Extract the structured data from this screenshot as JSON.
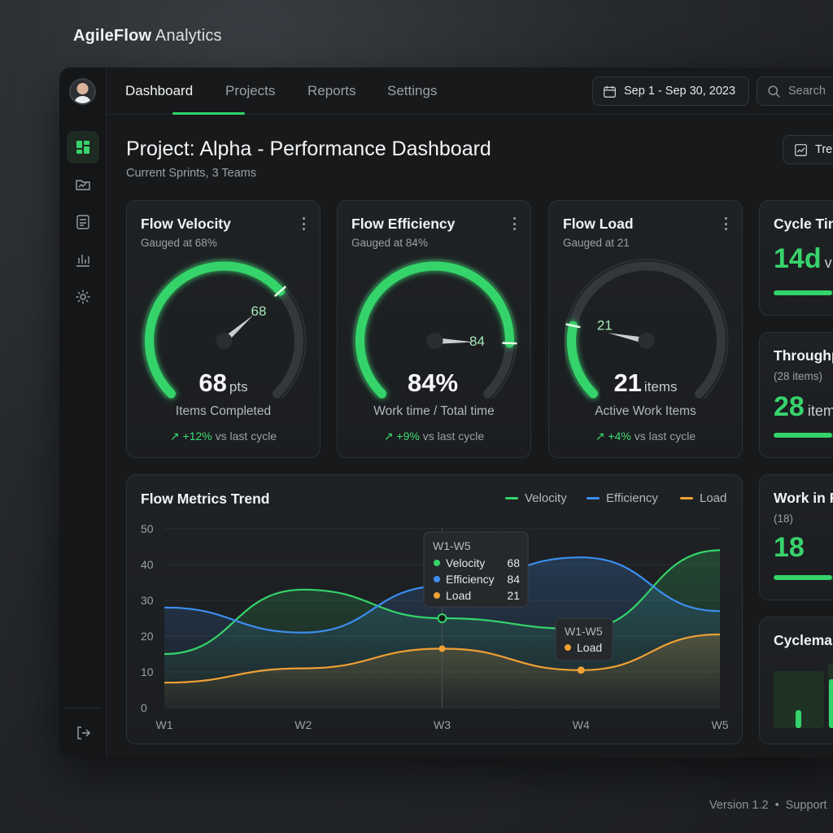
{
  "brand": {
    "name_bold": "AgileFlow",
    "name_rest": "Analytics"
  },
  "nav": {
    "tabs": [
      {
        "label": "Dashboard",
        "active": true
      },
      {
        "label": "Projects",
        "active": false
      },
      {
        "label": "Reports",
        "active": false
      },
      {
        "label": "Settings",
        "active": false
      }
    ],
    "date_range": "Sep 1 - Sep 30, 2023",
    "search_placeholder": "Search"
  },
  "sidebar": {
    "icons": [
      "dashboard-icon",
      "folder-chart-icon",
      "report-icon",
      "bar-chart-icon",
      "settings-icon"
    ],
    "logout_icon": "logout-icon"
  },
  "page": {
    "title": "Project: Alpha - Performance Dashboard",
    "subtitle": "Current Sprints, 3 Teams",
    "trend_button": "Trend"
  },
  "gauges": [
    {
      "title": "Flow Velocity",
      "sub": "Gauged at 68%",
      "needle_label": "68",
      "value": "68",
      "unit": "pts",
      "fraction": 0.68,
      "caption": "Items Completed",
      "delta": "+12%",
      "delta_rest": "vs last cycle"
    },
    {
      "title": "Flow Efficiency",
      "sub": "Gauged at 84%",
      "needle_label": "84",
      "value": "84%",
      "unit": "",
      "fraction": 0.84,
      "caption": "Work time / Total time",
      "delta": "+9%",
      "delta_rest": "vs last cycle"
    },
    {
      "title": "Flow Load",
      "sub": "Gauged at 21",
      "needle_label": "21",
      "value": "21",
      "unit": "items",
      "fraction": 0.21,
      "caption": "Active Work Items",
      "delta": "+4%",
      "delta_rest": "vs last cycle"
    }
  ],
  "side_cards": {
    "cycle_time": {
      "title": "Cycle Time",
      "value": "14d",
      "unit": "v",
      "fraction": 0.6
    },
    "throughput": {
      "title": "Throughput",
      "sub": "(28 items)",
      "value": "28",
      "unit": "items",
      "fraction": 0.6
    },
    "wip": {
      "title": "Work in Progress",
      "sub": "(18)",
      "value": "18",
      "fraction": 0.6
    },
    "cyclemap": {
      "title": "Cyclemap"
    }
  },
  "chart_data": {
    "type": "line",
    "title": "Flow Metrics Trend",
    "categories": [
      "W1",
      "W2",
      "W3",
      "W4",
      "W5"
    ],
    "ylim": [
      0,
      50
    ],
    "yticks": [
      "50",
      "40",
      "30",
      "20",
      "10",
      "0"
    ],
    "grid": true,
    "legend_position": "top-right",
    "series": [
      {
        "name": "Velocity",
        "color": "#34d46a",
        "values": [
          15,
          33,
          25,
          22,
          44
        ]
      },
      {
        "name": "Efficiency",
        "color": "#3b8ef0",
        "values": [
          28,
          21,
          34,
          42,
          27
        ]
      },
      {
        "name": "Load",
        "color": "#f0a035",
        "values": [
          7,
          11,
          16.5,
          10.5,
          20.5
        ]
      }
    ],
    "tooltip_main": {
      "title": "W1-W5",
      "rows": [
        {
          "label": "Velocity",
          "value": "68"
        },
        {
          "label": "Efficiency",
          "value": "84"
        },
        {
          "label": "Load",
          "value": "21"
        }
      ]
    },
    "tooltip_small": {
      "title": "W1-W5",
      "label": "Load"
    }
  },
  "footer": {
    "version": "Version 1.2",
    "support": "Support"
  },
  "colors": {
    "accent": "#34d46a",
    "blue": "#3b8ef0",
    "orange": "#f0a035"
  }
}
